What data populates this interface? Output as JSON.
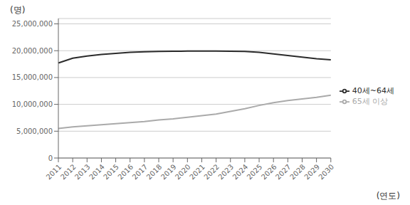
{
  "chart_data": {
    "type": "line",
    "xlabel": "(연도)",
    "ylabel": "(명)",
    "categories": [
      "2011",
      "2012",
      "2013",
      "2014",
      "2015",
      "2016",
      "2017",
      "2018",
      "2019",
      "2020",
      "2021",
      "2022",
      "2023",
      "2024",
      "2025",
      "2026",
      "2027",
      "2028",
      "2029",
      "2030"
    ],
    "series": [
      {
        "name": "40세~64세",
        "color": "#2b2b2b",
        "values": [
          17700000,
          18600000,
          19000000,
          19300000,
          19500000,
          19700000,
          19800000,
          19850000,
          19900000,
          19920000,
          19930000,
          19920000,
          19900000,
          19850000,
          19700000,
          19400000,
          19100000,
          18800000,
          18500000,
          18300000
        ]
      },
      {
        "name": "65세 이상",
        "color": "#aaaaaa",
        "values": [
          5500000,
          5800000,
          6000000,
          6200000,
          6400000,
          6600000,
          6800000,
          7100000,
          7300000,
          7600000,
          7900000,
          8200000,
          8700000,
          9200000,
          9800000,
          10300000,
          10700000,
          11000000,
          11300000,
          11700000
        ]
      }
    ],
    "ylim": [
      0,
      26000000
    ],
    "yticks": [
      0,
      {
        "value": 5000000,
        "label": "5,000,000"
      },
      {
        "value": 10000000,
        "label": "10,000,000"
      },
      {
        "value": 15000000,
        "label": "15,000,000"
      },
      {
        "value": 20000000,
        "label": "20,000,000"
      },
      {
        "value": 25000000,
        "label": "25,000,000"
      }
    ],
    "grid": true,
    "legend": "right"
  }
}
